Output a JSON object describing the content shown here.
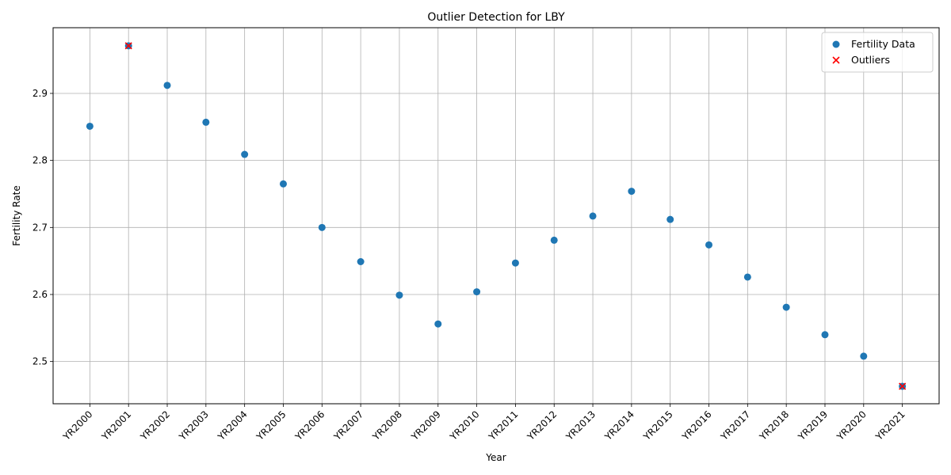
{
  "chart_data": {
    "type": "scatter",
    "title": "Outlier Detection for LBY",
    "xlabel": "Year",
    "ylabel": "Fertility Rate",
    "categories": [
      "YR2000",
      "YR2001",
      "YR2002",
      "YR2003",
      "YR2004",
      "YR2005",
      "YR2006",
      "YR2007",
      "YR2008",
      "YR2009",
      "YR2010",
      "YR2011",
      "YR2012",
      "YR2013",
      "YR2014",
      "YR2015",
      "YR2016",
      "YR2017",
      "YR2018",
      "YR2019",
      "YR2020",
      "YR2021"
    ],
    "series": [
      {
        "name": "Fertility Data",
        "marker": "circle",
        "color": "#1f77b4",
        "values": [
          2.851,
          2.971,
          2.912,
          2.857,
          2.809,
          2.765,
          2.7,
          2.649,
          2.599,
          2.556,
          2.604,
          2.647,
          2.681,
          2.717,
          2.754,
          2.712,
          2.674,
          2.626,
          2.581,
          2.54,
          2.508,
          2.463
        ]
      },
      {
        "name": "Outliers",
        "marker": "x",
        "color": "#ff0000",
        "x": [
          "YR2001",
          "YR2021"
        ],
        "values": [
          2.971,
          2.463
        ]
      }
    ],
    "ylim": [
      2.437,
      2.998
    ],
    "yticks": [
      2.5,
      2.6,
      2.7,
      2.8,
      2.9
    ],
    "grid": true,
    "legend": "top-right"
  }
}
